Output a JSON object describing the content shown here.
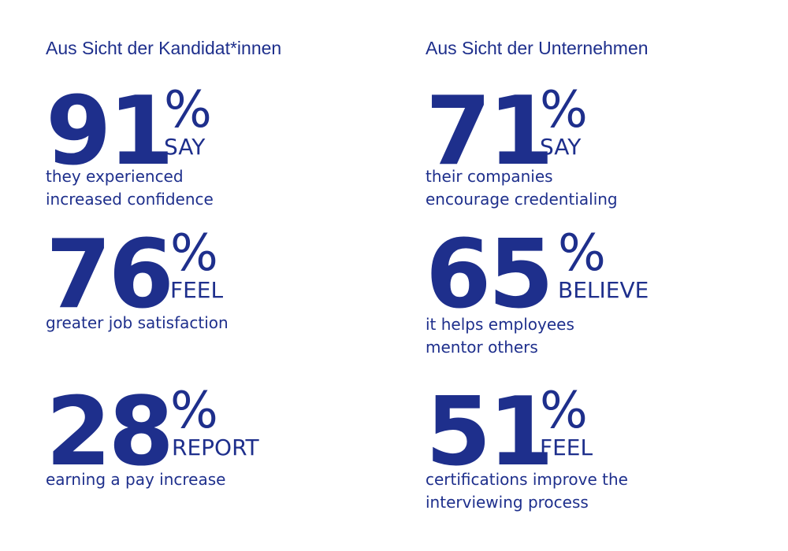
{
  "accent_color": "#1e2f8c",
  "left": {
    "heading": "Aus Sicht der Kandidat*innen",
    "stats": [
      {
        "number": "91",
        "percent": "%",
        "verb": "SAY",
        "desc": [
          "they experienced",
          "increased confidence"
        ]
      },
      {
        "number": "76",
        "percent": "%",
        "verb": "FEEL",
        "desc": [
          "greater job satisfaction"
        ]
      },
      {
        "number": "28",
        "percent": "%",
        "verb": "REPORT",
        "desc": [
          "earning a pay increase"
        ]
      }
    ]
  },
  "right": {
    "heading": "Aus Sicht der Unternehmen",
    "stats": [
      {
        "number": "71",
        "percent": "%",
        "verb": "SAY",
        "desc": [
          "their companies",
          "encourage credentialing"
        ]
      },
      {
        "number": "65",
        "percent": "%",
        "verb": "BELIEVE",
        "desc": [
          "it helps employees",
          "mentor others"
        ]
      },
      {
        "number": "51",
        "percent": "%",
        "verb": "FEEL",
        "desc": [
          "certifications improve the",
          "interviewing process"
        ]
      }
    ]
  }
}
